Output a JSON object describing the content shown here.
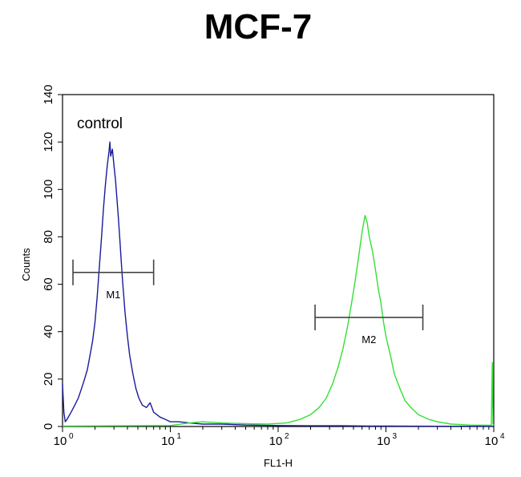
{
  "chart_data": {
    "type": "line",
    "title": "MCF-7",
    "xlabel": "FL1-H",
    "ylabel": "Counts",
    "x_scale": "log",
    "xlim": [
      1,
      10000
    ],
    "ylim": [
      0,
      140
    ],
    "x_ticks": [
      {
        "base": "10",
        "exp": "0",
        "value": 1
      },
      {
        "base": "10",
        "exp": "1",
        "value": 10
      },
      {
        "base": "10",
        "exp": "2",
        "value": 100
      },
      {
        "base": "10",
        "exp": "3",
        "value": 1000
      },
      {
        "base": "10",
        "exp": "4",
        "value": 10000
      }
    ],
    "y_ticks": [
      "0",
      "20",
      "40",
      "60",
      "80",
      "100",
      "120",
      "140"
    ],
    "grid": false,
    "annotation": "control",
    "series": [
      {
        "color": "#1a1a9c",
        "points": [
          [
            1.0,
            18
          ],
          [
            1.03,
            6
          ],
          [
            1.06,
            2
          ],
          [
            1.1,
            3
          ],
          [
            1.2,
            6
          ],
          [
            1.3,
            9
          ],
          [
            1.4,
            12
          ],
          [
            1.5,
            16
          ],
          [
            1.6,
            20
          ],
          [
            1.7,
            24
          ],
          [
            1.8,
            30
          ],
          [
            1.9,
            36
          ],
          [
            2.0,
            44
          ],
          [
            2.1,
            55
          ],
          [
            2.2,
            68
          ],
          [
            2.3,
            80
          ],
          [
            2.4,
            92
          ],
          [
            2.5,
            102
          ],
          [
            2.6,
            110
          ],
          [
            2.7,
            116
          ],
          [
            2.75,
            120
          ],
          [
            2.8,
            114
          ],
          [
            2.9,
            117
          ],
          [
            3.0,
            110
          ],
          [
            3.1,
            104
          ],
          [
            3.2,
            96
          ],
          [
            3.3,
            88
          ],
          [
            3.4,
            79
          ],
          [
            3.5,
            70
          ],
          [
            3.6,
            62
          ],
          [
            3.7,
            55
          ],
          [
            3.8,
            48
          ],
          [
            4.0,
            38
          ],
          [
            4.2,
            30
          ],
          [
            4.5,
            22
          ],
          [
            4.8,
            16
          ],
          [
            5.1,
            12
          ],
          [
            5.5,
            9
          ],
          [
            6.0,
            8
          ],
          [
            6.5,
            10
          ],
          [
            7.0,
            6
          ],
          [
            7.5,
            5
          ],
          [
            8.0,
            4
          ],
          [
            9.0,
            3
          ],
          [
            10.0,
            2
          ],
          [
            12,
            2
          ],
          [
            15,
            1.5
          ],
          [
            20,
            1
          ],
          [
            30,
            1
          ],
          [
            50,
            0.6
          ],
          [
            100,
            0.4
          ],
          [
            200,
            0.3
          ],
          [
            400,
            0.3
          ],
          [
            700,
            0.2
          ],
          [
            1000,
            0.2
          ],
          [
            3000,
            0.1
          ],
          [
            10000,
            0.1
          ]
        ]
      },
      {
        "color": "#33e033",
        "points": [
          [
            1.0,
            0.2
          ],
          [
            10,
            0.4
          ],
          [
            15,
            1.5
          ],
          [
            20,
            2
          ],
          [
            30,
            1.5
          ],
          [
            50,
            1.2
          ],
          [
            80,
            1
          ],
          [
            120,
            1.5
          ],
          [
            160,
            3
          ],
          [
            200,
            5
          ],
          [
            240,
            8
          ],
          [
            280,
            12
          ],
          [
            320,
            18
          ],
          [
            360,
            25
          ],
          [
            400,
            33
          ],
          [
            440,
            42
          ],
          [
            480,
            52
          ],
          [
            520,
            62
          ],
          [
            560,
            72
          ],
          [
            600,
            82
          ],
          [
            640,
            89
          ],
          [
            670,
            86
          ],
          [
            700,
            80
          ],
          [
            750,
            74
          ],
          [
            800,
            66
          ],
          [
            850,
            58
          ],
          [
            900,
            52
          ],
          [
            950,
            44
          ],
          [
            1000,
            38
          ],
          [
            1100,
            30
          ],
          [
            1200,
            22
          ],
          [
            1350,
            16
          ],
          [
            1500,
            11
          ],
          [
            1700,
            8
          ],
          [
            2000,
            5
          ],
          [
            2500,
            3
          ],
          [
            3000,
            2
          ],
          [
            4000,
            1
          ],
          [
            6000,
            0.6
          ],
          [
            9500,
            0.5
          ],
          [
            9700,
            27
          ],
          [
            9850,
            1
          ],
          [
            10000,
            0.5
          ]
        ]
      }
    ],
    "markers": [
      {
        "label": "M1",
        "x_start": 1.25,
        "x_end": 7.0,
        "y": 65
      },
      {
        "label": "M2",
        "x_start": 220,
        "x_end": 2200,
        "y": 46
      }
    ]
  }
}
